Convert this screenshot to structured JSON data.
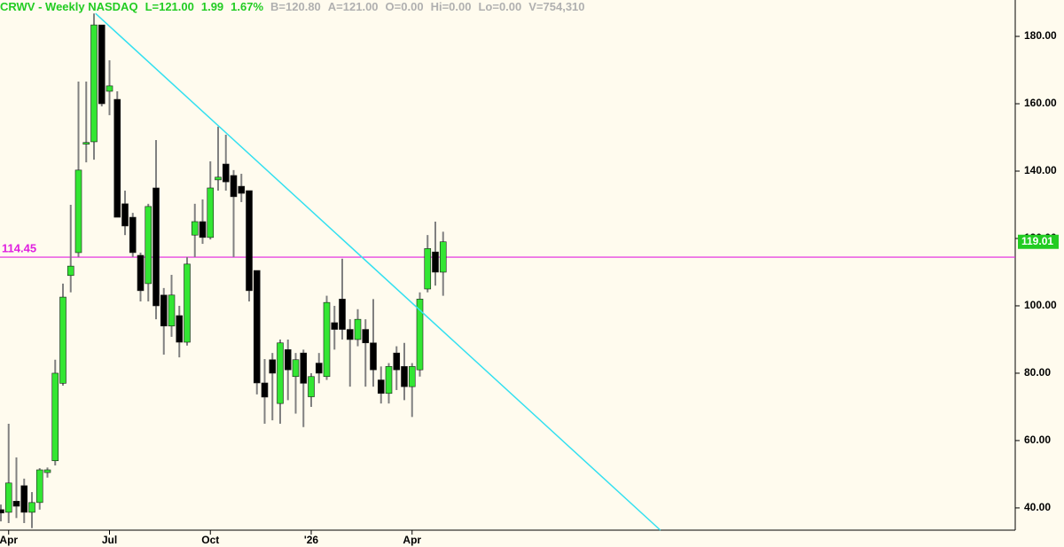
{
  "header": {
    "title": "CRWV - Weekly  NASDAQ",
    "quote": [
      "L=121.00",
      "1.99",
      "1.67%"
    ],
    "stats": [
      "B=120.80",
      "A=121.00",
      "O=0.00",
      "Hi=0.00",
      "Lo=0.00",
      "V=754,310"
    ]
  },
  "chart_data": {
    "type": "candlestick",
    "categories": [
      null,
      "Apr",
      null,
      null,
      null,
      null,
      null,
      null,
      null,
      null,
      null,
      null,
      null,
      null,
      "Jul",
      null,
      null,
      null,
      null,
      null,
      null,
      null,
      null,
      null,
      null,
      null,
      null,
      "Oct",
      null,
      null,
      null,
      null,
      null,
      null,
      null,
      null,
      null,
      null,
      null,
      null,
      "'26",
      null,
      null,
      null,
      null,
      null,
      null,
      null,
      null,
      null,
      null,
      null,
      null,
      "Apr",
      null,
      null,
      null,
      null
    ],
    "open": [
      39.5,
      38.7,
      42,
      46.6,
      38.7,
      41.6,
      50.5,
      54,
      77,
      109,
      115.8,
      148,
      148.7,
      183.4,
      163.7,
      161.3,
      130.3,
      126.3,
      115,
      106.6,
      135,
      103.2,
      94,
      97.1,
      89.2,
      121,
      125,
      120.3,
      137.4,
      142.1,
      138.7,
      135.5,
      134.2,
      110.5,
      77.1,
      84,
      71,
      87,
      79,
      86,
      73,
      83,
      79,
      95,
      102,
      93,
      90,
      93,
      89,
      78,
      74,
      86,
      82,
      76,
      81,
      105,
      116,
      110
    ],
    "high": [
      41,
      65,
      55,
      48.7,
      44.7,
      51.8,
      52,
      84,
      106.6,
      130,
      166.6,
      166.6,
      186.8,
      183.4,
      172.9,
      163.7,
      134.2,
      127.6,
      115.8,
      130.3,
      149.2,
      105.3,
      109.2,
      100,
      114.5,
      130.3,
      131.6,
      142.9,
      153.2,
      150.8,
      140.3,
      139.2,
      134.2,
      110.5,
      84.2,
      86,
      90,
      90,
      86,
      87,
      80,
      86,
      103,
      100,
      114,
      96,
      99,
      96,
      102,
      82,
      83,
      88,
      89,
      83,
      104,
      121,
      125,
      122
    ],
    "low": [
      36,
      35.5,
      37,
      35.5,
      34,
      39.5,
      49,
      52.6,
      76.3,
      104,
      114.5,
      142.6,
      143.4,
      159.2,
      156.6,
      126.3,
      121,
      114.5,
      101.3,
      101.3,
      96,
      85.5,
      90.8,
      84.7,
      88.2,
      114.5,
      118.4,
      119.7,
      134.2,
      134.2,
      114.5,
      130.8,
      101.3,
      73.7,
      65,
      66,
      65,
      72,
      68,
      64,
      70,
      77,
      78,
      87,
      90,
      76,
      88,
      76,
      76,
      71,
      71,
      75,
      72,
      67,
      79,
      104,
      106,
      103
    ],
    "close": [
      38.5,
      47.4,
      40.5,
      38.7,
      41.6,
      51.3,
      51.3,
      80,
      102.6,
      111.8,
      140.3,
      148.5,
      183.4,
      160,
      165.3,
      126.3,
      123.7,
      115.8,
      104.5,
      129.5,
      100,
      94,
      103.2,
      89.2,
      112.4,
      125,
      120.3,
      135,
      138.2,
      136.8,
      132.4,
      133.4,
      104.5,
      77.1,
      72.9,
      80,
      89,
      81,
      84,
      77,
      79,
      80,
      101,
      93,
      93,
      90,
      96,
      89,
      81,
      74,
      82,
      81,
      76,
      82,
      102,
      117,
      110,
      119.01
    ],
    "up_color": "#33e633",
    "down_color": "#000000",
    "wick_color": "#808080",
    "ylim": [
      33.4,
      190.8
    ],
    "yticks": [
      {
        "value": 40,
        "label": "40.00"
      },
      {
        "value": 60,
        "label": "60.00"
      },
      {
        "value": 80,
        "label": "80.00"
      },
      {
        "value": 100,
        "label": "100.00"
      },
      {
        "value": 120,
        "label": "120.00"
      },
      {
        "value": 140,
        "label": "140.00"
      },
      {
        "value": 160,
        "label": "160.00"
      },
      {
        "value": 180,
        "label": "180.00"
      }
    ],
    "grid": false,
    "hline": {
      "value": 114.45,
      "color": "#e020e0"
    },
    "last_price": {
      "value": 119.01,
      "color": "#22cc22"
    },
    "trendline": {
      "x": [
        12.2,
        85
      ],
      "values": [
        186.8,
        33.4
      ],
      "color": "#33e0f0"
    }
  }
}
